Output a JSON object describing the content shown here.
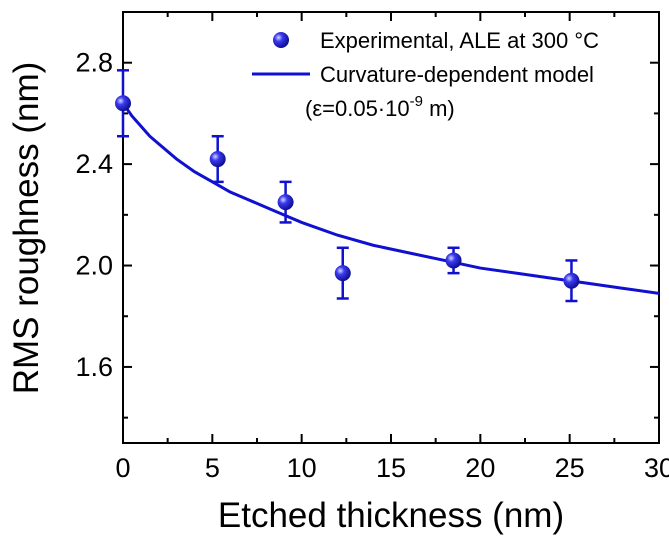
{
  "chart_data": {
    "type": "scatter",
    "xlabel": "Etched thickness (nm)",
    "ylabel": "RMS roughness (nm)",
    "xlim": [
      0,
      30
    ],
    "ylim": [
      1.3,
      3.0
    ],
    "x_ticks": [
      0,
      5,
      10,
      15,
      20,
      25,
      30
    ],
    "x_tick_labels": [
      "0",
      "5",
      "10",
      "15",
      "20",
      "25",
      "30"
    ],
    "y_ticks": [
      1.6,
      2.0,
      2.4,
      2.8
    ],
    "y_tick_labels": [
      "1.6",
      "2.0",
      "2.4",
      "2.8"
    ],
    "grid": false,
    "legend_position": "top-right",
    "colors": {
      "series": "#1010d0",
      "axis": "#000000"
    },
    "series": [
      {
        "name": "Experimental, ALE at 300 °C",
        "type": "scatter",
        "x": [
          0,
          5.3,
          9.1,
          12.3,
          18.5,
          25.1
        ],
        "y": [
          2.64,
          2.42,
          2.25,
          1.97,
          2.02,
          1.94
        ],
        "error": [
          0.13,
          0.09,
          0.08,
          0.1,
          0.05,
          0.08
        ]
      },
      {
        "name": "Curvature-dependent model",
        "type": "line",
        "x": [
          0,
          0.5,
          1,
          1.5,
          2,
          3,
          4,
          5,
          6,
          7,
          8,
          9,
          10,
          12,
          14,
          16,
          18,
          20,
          22,
          24,
          26,
          28,
          30
        ],
        "y": [
          2.64,
          2.59,
          2.55,
          2.51,
          2.48,
          2.42,
          2.37,
          2.33,
          2.29,
          2.26,
          2.23,
          2.2,
          2.17,
          2.12,
          2.08,
          2.05,
          2.02,
          1.99,
          1.97,
          1.95,
          1.93,
          1.91,
          1.89
        ]
      }
    ],
    "legend_note": {
      "prefix": "(ε=0.05·10",
      "exponent": "-9",
      "suffix": " m)"
    }
  }
}
